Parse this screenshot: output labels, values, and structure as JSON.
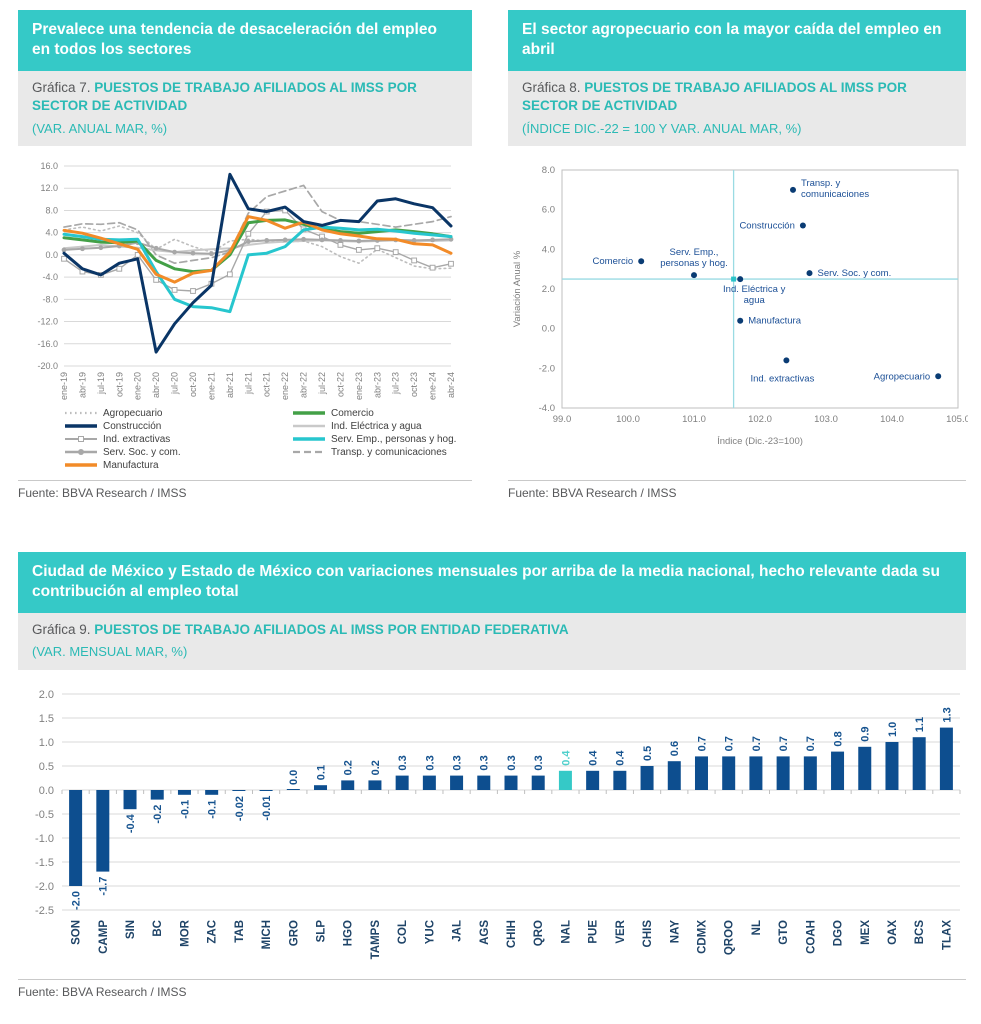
{
  "colors": {
    "banner_teal": "#35c9c7",
    "caption_teal": "#2bbab5",
    "caption_gray_bg": "#e9e9e9",
    "axis_text": "#808080",
    "grid": "#d9d9d9",
    "navy": "#0a3566",
    "bar_navy": "#0d4e8f",
    "highlight_teal": "#35c9c7"
  },
  "cards": [
    {
      "banner": "Prevalece una tendencia de desaceleración del empleo en todos los sectores",
      "caption_prefix": "Gráfica 7.",
      "caption_title": " PUESTOS DE TRABAJO AFILIADOS AL IMSS POR SECTOR DE ACTIVIDAD",
      "caption_subtitle": "(VAR. ANUAL MAR, %)",
      "source": "Fuente: BBVA Research / IMSS"
    },
    {
      "banner": "El sector agropecuario con la mayor caída del empleo en abril",
      "caption_prefix": "Gráfica 8.",
      "caption_title": " PUESTOS DE TRABAJO AFILIADOS AL IMSS POR SECTOR DE ACTIVIDAD",
      "caption_subtitle": "(ÍNDICE DIC.-22 = 100 Y VAR. ANUAL MAR, %)",
      "source": "Fuente: BBVA Research / IMSS"
    },
    {
      "banner": "Ciudad de México y Estado de México con variaciones mensuales por arriba de la media nacional, hecho relevante dada su contribución al empleo total",
      "caption_prefix": "Gráfica 9.",
      "caption_title": " PUESTOS DE TRABAJO AFILIADOS AL IMSS POR ENTIDAD FEDERATIVA",
      "caption_subtitle": "(VAR. MENSUAL MAR, %)",
      "source": "Fuente: BBVA Research / IMSS"
    }
  ],
  "chart_data": [
    {
      "type": "line",
      "title": "Puestos de trabajo afiliados al IMSS por sector de actividad (var. anual mar, %)",
      "x": [
        "ene-19",
        "abr-19",
        "jul-19",
        "oct-19",
        "ene-20",
        "abr-20",
        "jul-20",
        "oct-20",
        "ene-21",
        "abr-21",
        "jul-21",
        "oct-21",
        "ene-22",
        "abr-22",
        "jul-22",
        "oct-22",
        "ene-23",
        "abr-23",
        "jul-23",
        "oct-23",
        "ene-24",
        "abr-24"
      ],
      "ylim": [
        -20,
        16
      ],
      "ytick_step": 4,
      "grid": true,
      "legend_position": "bottom",
      "series": [
        {
          "name": "Agropecuario",
          "color": "#bdbdbd",
          "style": "dotted",
          "width": 1.6,
          "values": [
            4.5,
            5.0,
            4.3,
            5.2,
            4.0,
            1.0,
            2.8,
            1.5,
            0.5,
            2.5,
            2.8,
            2.5,
            2.3,
            2.5,
            1.5,
            -0.3,
            -1.5,
            1.0,
            -0.5,
            -2.0,
            -2.5,
            -2.4
          ]
        },
        {
          "name": "Transp. y comunicaciones",
          "color": "#a8a8a8",
          "style": "dashed",
          "width": 1.7,
          "values": [
            5.0,
            5.6,
            5.5,
            5.8,
            4.5,
            0.0,
            -1.5,
            -1.0,
            -0.5,
            0.5,
            7.5,
            10.5,
            11.5,
            12.5,
            7.8,
            6.2,
            6.0,
            5.5,
            5.0,
            5.5,
            6.0,
            6.9
          ]
        },
        {
          "name": "Ind. Eléctrica y agua",
          "color": "#c9c9c9",
          "style": "solid",
          "width": 2,
          "values": [
            1.2,
            1.5,
            1.8,
            1.5,
            1.3,
            0.8,
            0.5,
            0.8,
            1.0,
            1.2,
            1.8,
            2.2,
            2.4,
            2.5,
            2.6,
            2.5,
            2.4,
            2.5,
            2.6,
            2.5,
            2.5,
            2.6
          ]
        },
        {
          "name": "Ind. extractivas",
          "color": "#a8a8a8",
          "style": "solid",
          "width": 1.4,
          "marker": "square",
          "values": [
            -0.7,
            -3.0,
            -3.6,
            -2.5,
            0.0,
            -4.5,
            -6.3,
            -6.5,
            -5.2,
            -3.5,
            3.8,
            7.8,
            8.0,
            4.6,
            3.3,
            1.8,
            0.9,
            1.2,
            0.5,
            -1.0,
            -2.3,
            -1.6
          ]
        },
        {
          "name": "Serv. Soc. y com.",
          "color": "#a8a8a8",
          "style": "solid",
          "width": 2,
          "marker": "circle",
          "values": [
            0.9,
            1.1,
            1.3,
            1.6,
            2.2,
            1.2,
            0.5,
            0.3,
            0.2,
            0.8,
            2.4,
            2.6,
            2.7,
            2.8,
            2.7,
            2.6,
            2.5,
            2.6,
            2.7,
            2.6,
            2.7,
            2.8
          ]
        },
        {
          "name": "Comercio",
          "color": "#43a047",
          "style": "solid",
          "width": 3,
          "values": [
            3.1,
            2.7,
            2.3,
            2.2,
            2.5,
            -1.0,
            -2.5,
            -3.0,
            -2.8,
            0.0,
            5.8,
            6.2,
            6.3,
            5.5,
            4.6,
            4.2,
            3.9,
            4.2,
            4.5,
            4.2,
            3.8,
            3.3
          ]
        },
        {
          "name": "Serv. Emp., personas y hog.",
          "color": "#27c6ce",
          "style": "solid",
          "width": 3,
          "values": [
            3.7,
            3.3,
            2.8,
            2.7,
            2.8,
            -3.0,
            -8.0,
            -9.3,
            -9.5,
            -10.2,
            0.0,
            0.3,
            1.5,
            4.5,
            5.0,
            4.8,
            4.5,
            4.6,
            4.3,
            3.9,
            3.6,
            3.3
          ]
        },
        {
          "name": "Manufactura",
          "color": "#f28b28",
          "style": "solid",
          "width": 3,
          "values": [
            4.4,
            3.9,
            3.0,
            2.0,
            1.0,
            -3.5,
            -4.9,
            -3.3,
            -2.8,
            0.5,
            6.9,
            6.2,
            4.8,
            5.9,
            4.5,
            3.8,
            3.4,
            2.9,
            2.8,
            2.0,
            1.8,
            0.3
          ]
        },
        {
          "name": "Construcción",
          "color": "#0a3566",
          "style": "solid",
          "width": 3,
          "values": [
            0.3,
            -2.5,
            -3.6,
            -1.5,
            -0.7,
            -17.5,
            -12.4,
            -8.6,
            -5.5,
            14.5,
            8.3,
            7.8,
            8.6,
            6.0,
            5.3,
            6.2,
            6.0,
            9.7,
            10.1,
            9.2,
            8.5,
            5.2
          ]
        }
      ],
      "legend_columns": [
        [
          "Agropecuario",
          "Construcción",
          "Ind. extractivas",
          "Serv. Soc. y com.",
          "Manufactura"
        ],
        [
          "Comercio",
          "Ind. Eléctrica y agua",
          "Serv. Emp., personas y hog.",
          "Transp. y comunicaciones"
        ]
      ]
    },
    {
      "type": "scatter",
      "title": "Puestos de trabajo afiliados al IMSS por sector de actividad (índice dic.-22 = 100 y var. anual mar, %)",
      "xlabel": "Índice (Dic.-23=100)",
      "ylabel": "Variación Anual %",
      "xlim": [
        99,
        105
      ],
      "xtick_step": 1,
      "ylim": [
        -4,
        8
      ],
      "ytick_step": 2,
      "grid": false,
      "point_color": "#0a3c74",
      "label_color": "#1b4f96",
      "crosshair": {
        "x": 101.6,
        "y": 2.5,
        "color": "#9adbe3",
        "marker_color": "#2bc4c9"
      },
      "points": [
        {
          "label": "Comercio",
          "x": 100.2,
          "y": 3.4,
          "label_side": "left"
        },
        {
          "label": "Serv. Emp., personas y hog.",
          "label_lines": [
            "Serv. Emp.,",
            "personas y hog."
          ],
          "x": 101.0,
          "y": 2.7,
          "label_side": "above"
        },
        {
          "label": "Construcción",
          "x": 102.65,
          "y": 5.2,
          "label_side": "left"
        },
        {
          "label": "Transp. y comunicaciones",
          "label_lines": [
            "Transp. y",
            "comunicaciones"
          ],
          "x": 102.5,
          "y": 7.0,
          "label_side": "right"
        },
        {
          "label": "Serv. Soc. y com.",
          "x": 102.75,
          "y": 2.8,
          "label_side": "right"
        },
        {
          "label": "Ind. Eléctrica y agua",
          "label_lines": [
            "Ind. Eléctrica y",
            "agua"
          ],
          "x": 101.7,
          "y": 2.5,
          "label_side": "below",
          "dx": 14
        },
        {
          "label": "Manufactura",
          "x": 101.7,
          "y": 0.4,
          "label_side": "right"
        },
        {
          "label": "Ind. extractivas",
          "x": 102.4,
          "y": -1.6,
          "label_side": "below",
          "dy": 8,
          "dx": -4
        },
        {
          "label": "Agropecuario",
          "x": 104.7,
          "y": -2.4,
          "label_side": "left"
        }
      ]
    },
    {
      "type": "bar",
      "title": "Puestos de trabajo afiliados al IMSS por entidad federativa (var. mensual mar, %)",
      "categories": [
        "SON",
        "CAMP",
        "SIN",
        "BC",
        "MOR",
        "ZAC",
        "TAB",
        "MICH",
        "GRO",
        "SLP",
        "HGO",
        "TAMPS",
        "COL",
        "YUC",
        "JAL",
        "AGS",
        "CHIH",
        "QRO",
        "NAL",
        "PUE",
        "VER",
        "CHIS",
        "NAY",
        "CDMX",
        "QROO",
        "NL",
        "GTO",
        "COAH",
        "DGO",
        "MEX",
        "OAX",
        "BCS",
        "TLAX"
      ],
      "values": [
        -2.0,
        -1.7,
        -0.4,
        -0.2,
        -0.1,
        -0.1,
        -0.02,
        -0.01,
        0.0,
        0.1,
        0.2,
        0.2,
        0.3,
        0.3,
        0.3,
        0.3,
        0.3,
        0.3,
        0.4,
        0.4,
        0.4,
        0.5,
        0.6,
        0.7,
        0.7,
        0.7,
        0.7,
        0.7,
        0.8,
        0.9,
        1.0,
        1.1,
        1.3
      ],
      "value_labels": [
        "-2.0",
        "-1.7",
        "-0.4",
        "-0.2",
        "-0.1",
        "-0.1",
        "-0.02",
        "-0.01",
        "0.0",
        "0.1",
        "0.2",
        "0.2",
        "0.3",
        "0.3",
        "0.3",
        "0.3",
        "0.3",
        "0.3",
        "0.4",
        "0.4",
        "0.4",
        "0.5",
        "0.6",
        "0.7",
        "0.7",
        "0.7",
        "0.7",
        "0.7",
        "0.8",
        "0.9",
        "1.0",
        "1.1",
        "1.3"
      ],
      "highlight_category": "NAL",
      "highlight_index": 18,
      "bar_color": "#0d4e8f",
      "highlight_color": "#35c9c7",
      "value_label_color": "#16538f",
      "highlight_label_color": "#4fd0cc",
      "category_label_color": "#1f4468",
      "ylim": [
        -2.5,
        2.0
      ],
      "ytick_step": 0.5,
      "grid": true
    }
  ]
}
